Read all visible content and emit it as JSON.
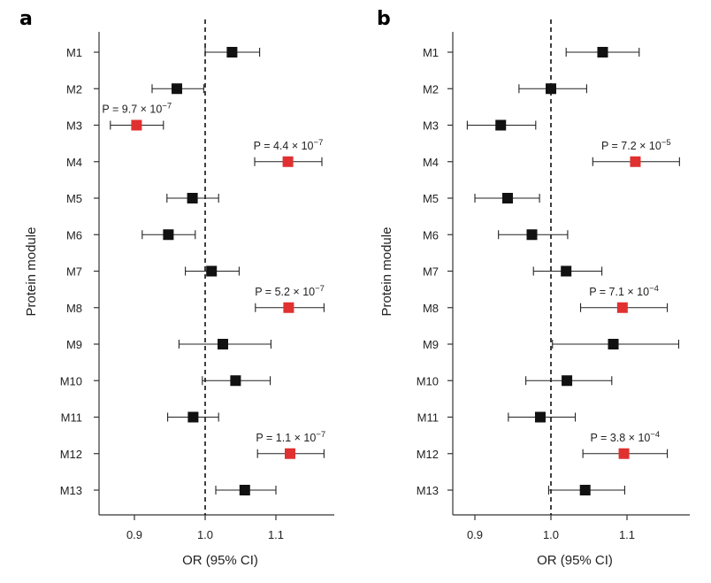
{
  "colors": {
    "significant": "#e03030",
    "default": "#111111",
    "axis": "#333333"
  },
  "chart_data": [
    {
      "type": "scatter",
      "subtype": "forest-plot",
      "panel": "a",
      "xlabel": "OR (95% CI)",
      "ylabel": "Protein module",
      "xlim": [
        0.86,
        1.18
      ],
      "xticks": [
        0.9,
        1.0,
        1.1
      ],
      "xtick_labels": [
        "0.9",
        "1.0",
        "1.1"
      ],
      "reference_line": 1.0,
      "rows": [
        {
          "label": "M1",
          "or": 1.038,
          "lo": 1.0,
          "hi": 1.077,
          "sig": false
        },
        {
          "label": "M2",
          "or": 0.96,
          "lo": 0.925,
          "hi": 0.998,
          "sig": false
        },
        {
          "label": "M3",
          "or": 0.903,
          "lo": 0.866,
          "hi": 0.941,
          "sig": true,
          "p_base": "P = 9.7 × 10",
          "p_exp": "−7"
        },
        {
          "label": "M4",
          "or": 1.117,
          "lo": 1.07,
          "hi": 1.165,
          "sig": true,
          "p_base": "P = 4.4 × 10",
          "p_exp": "−7"
        },
        {
          "label": "M5",
          "or": 0.982,
          "lo": 0.946,
          "hi": 1.019,
          "sig": false
        },
        {
          "label": "M6",
          "or": 0.948,
          "lo": 0.911,
          "hi": 0.986,
          "sig": false
        },
        {
          "label": "M7",
          "or": 1.009,
          "lo": 0.972,
          "hi": 1.048,
          "sig": false
        },
        {
          "label": "M8",
          "or": 1.118,
          "lo": 1.071,
          "hi": 1.168,
          "sig": true,
          "p_base": "P = 5.2 × 10",
          "p_exp": "−7"
        },
        {
          "label": "M9",
          "or": 1.025,
          "lo": 0.963,
          "hi": 1.093,
          "sig": false
        },
        {
          "label": "M10",
          "or": 1.043,
          "lo": 0.996,
          "hi": 1.092,
          "sig": false
        },
        {
          "label": "M11",
          "or": 0.983,
          "lo": 0.947,
          "hi": 1.019,
          "sig": false
        },
        {
          "label": "M12",
          "or": 1.12,
          "lo": 1.074,
          "hi": 1.168,
          "sig": true,
          "p_base": "P = 1.1 × 10",
          "p_exp": "−7"
        },
        {
          "label": "M13",
          "or": 1.056,
          "lo": 1.015,
          "hi": 1.1,
          "sig": false
        }
      ]
    },
    {
      "type": "scatter",
      "subtype": "forest-plot",
      "panel": "b",
      "xlabel": "OR (95% CI)",
      "ylabel": "Protein module",
      "xlim": [
        0.86,
        1.18
      ],
      "xticks": [
        0.9,
        1.0,
        1.1
      ],
      "xtick_labels": [
        "0.9",
        "1.0",
        "1.1"
      ],
      "reference_line": 1.0,
      "rows": [
        {
          "label": "M1",
          "or": 1.068,
          "lo": 1.02,
          "hi": 1.116,
          "sig": false
        },
        {
          "label": "M2",
          "or": 1.0,
          "lo": 0.958,
          "hi": 1.047,
          "sig": false
        },
        {
          "label": "M3",
          "or": 0.934,
          "lo": 0.89,
          "hi": 0.98,
          "sig": false
        },
        {
          "label": "M4",
          "or": 1.111,
          "lo": 1.055,
          "hi": 1.169,
          "sig": true,
          "p_base": "P = 7.2 × 10",
          "p_exp": "−5"
        },
        {
          "label": "M5",
          "or": 0.943,
          "lo": 0.9,
          "hi": 0.985,
          "sig": false
        },
        {
          "label": "M6",
          "or": 0.975,
          "lo": 0.931,
          "hi": 1.022,
          "sig": false
        },
        {
          "label": "M7",
          "or": 1.02,
          "lo": 0.977,
          "hi": 1.067,
          "sig": false
        },
        {
          "label": "M8",
          "or": 1.094,
          "lo": 1.039,
          "hi": 1.153,
          "sig": true,
          "p_base": "P = 7.1 × 10",
          "p_exp": "−4"
        },
        {
          "label": "M9",
          "or": 1.082,
          "lo": 1.002,
          "hi": 1.168,
          "sig": false
        },
        {
          "label": "M10",
          "or": 1.021,
          "lo": 0.967,
          "hi": 1.08,
          "sig": false
        },
        {
          "label": "M11",
          "or": 0.986,
          "lo": 0.944,
          "hi": 1.032,
          "sig": false
        },
        {
          "label": "M12",
          "or": 1.096,
          "lo": 1.042,
          "hi": 1.153,
          "sig": true,
          "p_base": "P = 3.8 × 10",
          "p_exp": "−4"
        },
        {
          "label": "M13",
          "or": 1.045,
          "lo": 0.997,
          "hi": 1.097,
          "sig": false
        }
      ]
    }
  ]
}
